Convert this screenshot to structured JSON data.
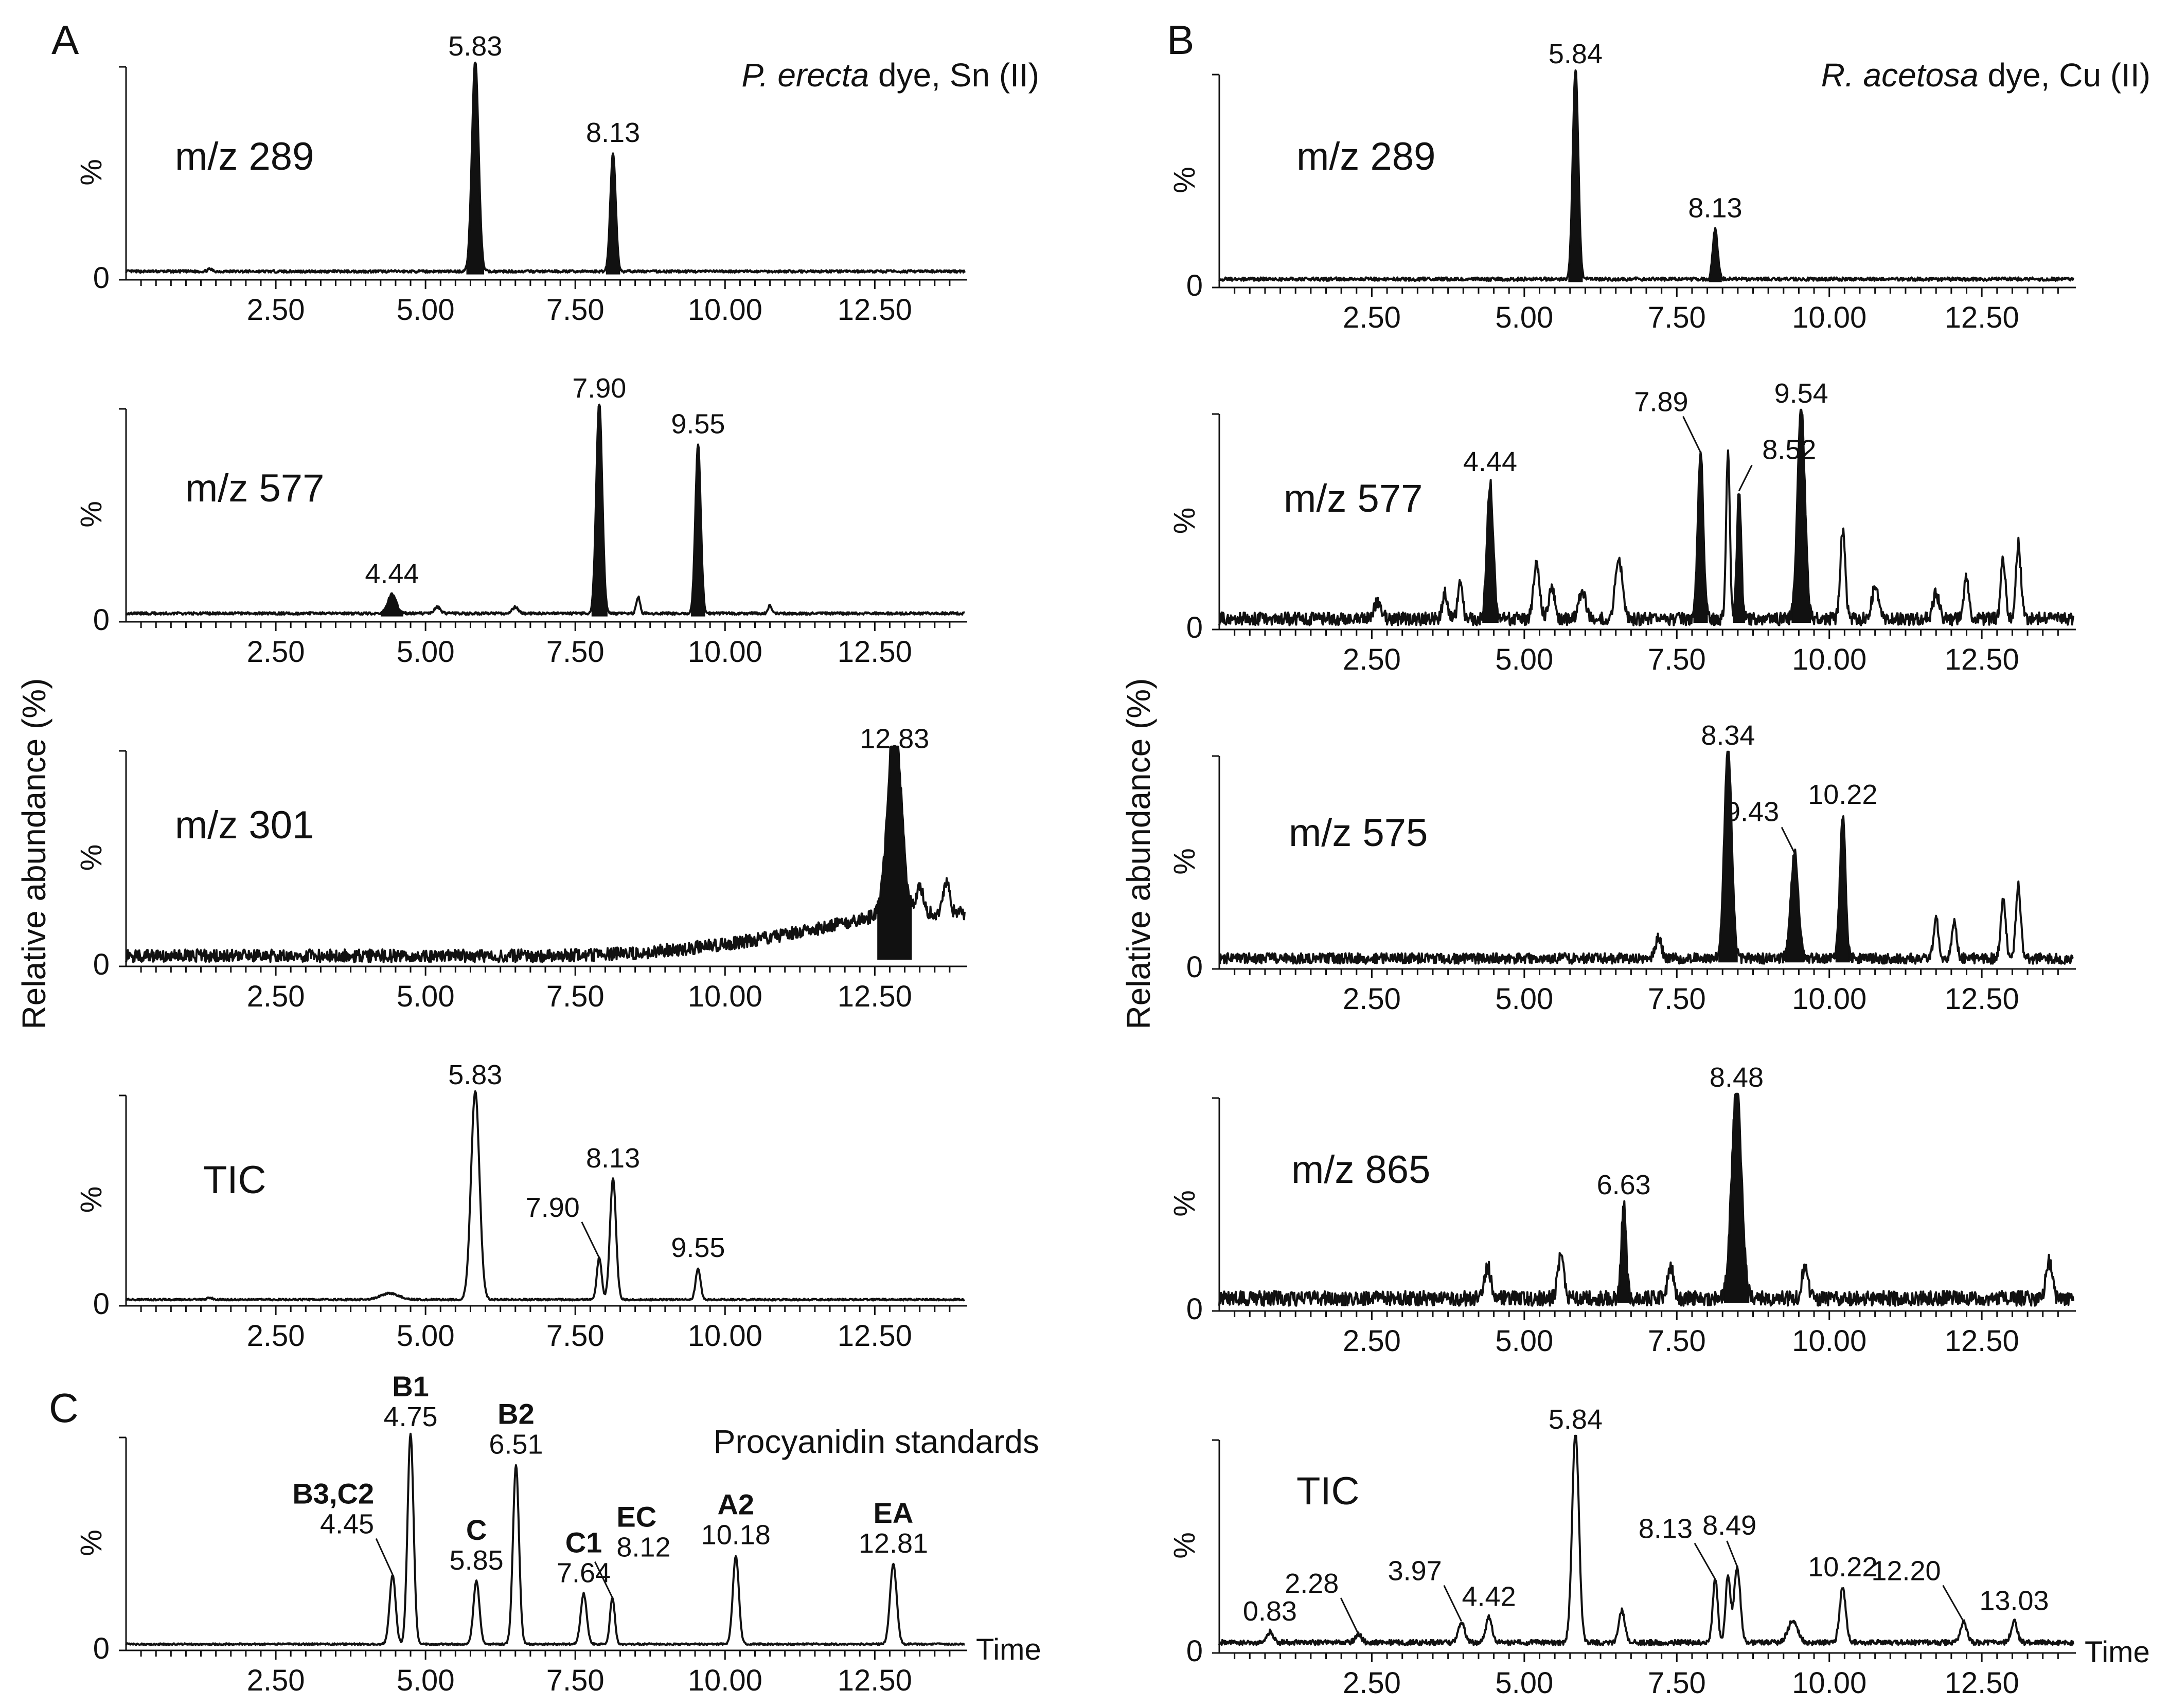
{
  "panel_letters": {
    "a": "A",
    "b": "B",
    "c": "C"
  },
  "titles": {
    "a_italic": "P. erecta",
    "a_rest": " dye, Sn (II)",
    "b_italic": "R. acetosa",
    "b_rest": " dye, Cu (II)",
    "c": "Procyanidin standards"
  },
  "ylabel": "Relative abundance (%)",
  "x_axis_label": "Time",
  "chart_data": [
    {
      "type": "line",
      "id": "A1",
      "title": "m/z 289",
      "ylabel": "%",
      "y_tick": "0",
      "xlim": [
        0,
        14
      ],
      "x_ticks": [
        "2.50",
        "5.00",
        "7.50",
        "10.00",
        "12.50"
      ],
      "baseline": 0.03,
      "noise": 0.006,
      "peaks": [
        {
          "rt": 5.83,
          "h": 1.0,
          "w": 0.055,
          "label": "5.83",
          "filled": true
        },
        {
          "rt": 8.13,
          "h": 0.56,
          "w": 0.045,
          "label": "8.13",
          "filled": true
        },
        {
          "rt": 1.4,
          "h": 0.01,
          "w": 0.04
        }
      ]
    },
    {
      "type": "line",
      "id": "A2",
      "title": "m/z 577",
      "ylabel": "%",
      "y_tick": "0",
      "xlim": [
        0,
        14
      ],
      "x_ticks": [
        "2.50",
        "5.00",
        "7.50",
        "10.00",
        "12.50"
      ],
      "baseline": 0.03,
      "noise": 0.006,
      "peaks": [
        {
          "rt": 4.44,
          "h": 0.09,
          "w": 0.07,
          "label": "4.44",
          "filled": true
        },
        {
          "rt": 7.9,
          "h": 1.0,
          "w": 0.05,
          "label": "7.90",
          "filled": true
        },
        {
          "rt": 9.55,
          "h": 0.8,
          "w": 0.045,
          "label": "9.55",
          "filled": true
        },
        {
          "rt": 8.55,
          "h": 0.08,
          "w": 0.03
        },
        {
          "rt": 10.75,
          "h": 0.04,
          "w": 0.03
        },
        {
          "rt": 5.2,
          "h": 0.03,
          "w": 0.05
        },
        {
          "rt": 6.5,
          "h": 0.03,
          "w": 0.05
        }
      ]
    },
    {
      "type": "line",
      "id": "A3",
      "title": "m/z 301",
      "ylabel": "%",
      "y_tick": "0",
      "xlim": [
        0,
        14
      ],
      "x_ticks": [
        "2.50",
        "5.00",
        "7.50",
        "10.00",
        "12.50"
      ],
      "baseline": 0.04,
      "noise": 0.03,
      "ramp": {
        "start": 7.0,
        "end": 12.7,
        "to": 0.2
      },
      "peaks": [
        {
          "rt": 12.83,
          "h": 0.92,
          "w": 0.11,
          "label": "12.83",
          "filled": true
        },
        {
          "rt": 13.25,
          "h": 0.12,
          "w": 0.06
        },
        {
          "rt": 13.7,
          "h": 0.15,
          "w": 0.05
        }
      ]
    },
    {
      "type": "line",
      "id": "A4",
      "title": "TIC",
      "ylabel": "%",
      "y_tick": "0",
      "xlim": [
        0,
        14
      ],
      "x_ticks": [
        "2.50",
        "5.00",
        "7.50",
        "10.00",
        "12.50"
      ],
      "baseline": 0.02,
      "noise": 0.004,
      "peaks": [
        {
          "rt": 5.83,
          "h": 1.0,
          "w": 0.07,
          "label": "5.83"
        },
        {
          "rt": 8.13,
          "h": 0.58,
          "w": 0.05,
          "label": "8.13"
        },
        {
          "rt": 7.9,
          "h": 0.2,
          "w": 0.04,
          "label": "7.90",
          "leader": true
        },
        {
          "rt": 9.55,
          "h": 0.15,
          "w": 0.04,
          "label": "9.55"
        },
        {
          "rt": 4.4,
          "h": 0.03,
          "w": 0.15
        },
        {
          "rt": 1.4,
          "h": 0.01,
          "w": 0.04
        }
      ]
    },
    {
      "type": "line",
      "id": "C",
      "title": "",
      "ylabel": "%",
      "y_tick": "0",
      "xlim": [
        0,
        14
      ],
      "x_ticks": [
        "2.50",
        "5.00",
        "7.50",
        "10.00",
        "12.50"
      ],
      "baseline": 0.02,
      "noise": 0.004,
      "peaks": [
        {
          "rt": 4.45,
          "h": 0.33,
          "w": 0.05,
          "label": "4.45",
          "compound": "B3,C2",
          "leader": true
        },
        {
          "rt": 4.75,
          "h": 1.0,
          "w": 0.05,
          "label": "4.75",
          "compound": "B1"
        },
        {
          "rt": 5.85,
          "h": 0.3,
          "w": 0.05,
          "label": "5.85",
          "compound": "C"
        },
        {
          "rt": 6.51,
          "h": 0.85,
          "w": 0.05,
          "label": "6.51",
          "compound": "B2"
        },
        {
          "rt": 7.64,
          "h": 0.24,
          "w": 0.05,
          "label": "7.64",
          "compound": "C1"
        },
        {
          "rt": 8.12,
          "h": 0.22,
          "w": 0.04,
          "label": "8.12",
          "compound": "EC",
          "leader": true
        },
        {
          "rt": 10.18,
          "h": 0.42,
          "w": 0.05,
          "label": "10.18",
          "compound": "A2"
        },
        {
          "rt": 12.81,
          "h": 0.38,
          "w": 0.055,
          "label": "12.81",
          "compound": "EA"
        }
      ]
    },
    {
      "type": "line",
      "id": "B1",
      "title": "m/z 289",
      "ylabel": "%",
      "y_tick": "0",
      "xlim": [
        0,
        14
      ],
      "x_ticks": [
        "2.50",
        "5.00",
        "7.50",
        "10.00",
        "12.50"
      ],
      "baseline": 0.03,
      "noise": 0.008,
      "peaks": [
        {
          "rt": 5.84,
          "h": 1.0,
          "w": 0.045,
          "label": "5.84",
          "filled": true
        },
        {
          "rt": 8.13,
          "h": 0.24,
          "w": 0.04,
          "label": "8.13",
          "filled": true
        }
      ]
    },
    {
      "type": "line",
      "id": "B2",
      "title": "m/z 577",
      "ylabel": "%",
      "y_tick": "0",
      "xlim": [
        0,
        14
      ],
      "x_ticks": [
        "2.50",
        "5.00",
        "7.50",
        "10.00",
        "12.50"
      ],
      "baseline": 0.04,
      "noise": 0.03,
      "peaks": [
        {
          "rt": 4.44,
          "h": 0.64,
          "w": 0.05,
          "label": "4.44",
          "filled": true
        },
        {
          "rt": 7.89,
          "h": 0.78,
          "w": 0.045,
          "label": "7.89",
          "filled": true,
          "leader": true
        },
        {
          "rt": 8.34,
          "h": 0.78,
          "w": 0.03
        },
        {
          "rt": 8.52,
          "h": 0.6,
          "w": 0.035,
          "label": "8.52",
          "filled": true,
          "leader": true
        },
        {
          "rt": 9.54,
          "h": 1.0,
          "w": 0.06,
          "label": "9.54",
          "filled": true
        },
        {
          "rt": 10.22,
          "h": 0.42,
          "w": 0.04
        },
        {
          "rt": 5.2,
          "h": 0.25,
          "w": 0.05
        },
        {
          "rt": 5.45,
          "h": 0.15,
          "w": 0.05
        },
        {
          "rt": 6.55,
          "h": 0.28,
          "w": 0.06
        },
        {
          "rt": 5.95,
          "h": 0.14,
          "w": 0.05
        },
        {
          "rt": 3.7,
          "h": 0.12,
          "w": 0.04
        },
        {
          "rt": 3.95,
          "h": 0.16,
          "w": 0.04
        },
        {
          "rt": 10.75,
          "h": 0.15,
          "w": 0.05
        },
        {
          "rt": 12.85,
          "h": 0.28,
          "w": 0.04
        },
        {
          "rt": 13.1,
          "h": 0.35,
          "w": 0.04
        },
        {
          "rt": 12.25,
          "h": 0.2,
          "w": 0.04
        },
        {
          "rt": 11.75,
          "h": 0.12,
          "w": 0.05
        },
        {
          "rt": 2.6,
          "h": 0.08,
          "w": 0.06
        }
      ]
    },
    {
      "type": "line",
      "id": "B3",
      "title": "m/z 575",
      "ylabel": "%",
      "y_tick": "0",
      "xlim": [
        0,
        14
      ],
      "x_ticks": [
        "2.50",
        "5.00",
        "7.50",
        "10.00",
        "12.50"
      ],
      "baseline": 0.04,
      "noise": 0.025,
      "peaks": [
        {
          "rt": 8.34,
          "h": 1.0,
          "w": 0.06,
          "label": "8.34",
          "filled": true
        },
        {
          "rt": 9.43,
          "h": 0.5,
          "w": 0.06,
          "label": "9.43",
          "filled": true,
          "leader": true
        },
        {
          "rt": 10.22,
          "h": 0.68,
          "w": 0.045,
          "label": "10.22",
          "filled": true
        },
        {
          "rt": 7.2,
          "h": 0.1,
          "w": 0.05
        },
        {
          "rt": 11.75,
          "h": 0.2,
          "w": 0.04
        },
        {
          "rt": 12.05,
          "h": 0.18,
          "w": 0.04
        },
        {
          "rt": 12.85,
          "h": 0.28,
          "w": 0.04
        },
        {
          "rt": 13.1,
          "h": 0.34,
          "w": 0.04
        }
      ]
    },
    {
      "type": "line",
      "id": "B4",
      "title": "m/z 865",
      "ylabel": "%",
      "y_tick": "0",
      "xlim": [
        0,
        14
      ],
      "x_ticks": [
        "2.50",
        "5.00",
        "7.50",
        "10.00",
        "12.50"
      ],
      "baseline": 0.05,
      "noise": 0.035,
      "peaks": [
        {
          "rt": 6.63,
          "h": 0.44,
          "w": 0.04,
          "label": "6.63",
          "filled": true
        },
        {
          "rt": 8.48,
          "h": 1.0,
          "w": 0.08,
          "label": "8.48",
          "filled": true
        },
        {
          "rt": 5.6,
          "h": 0.2,
          "w": 0.05
        },
        {
          "rt": 4.4,
          "h": 0.15,
          "w": 0.05
        },
        {
          "rt": 7.4,
          "h": 0.15,
          "w": 0.05
        },
        {
          "rt": 13.6,
          "h": 0.18,
          "w": 0.05
        },
        {
          "rt": 9.6,
          "h": 0.14,
          "w": 0.05
        }
      ]
    },
    {
      "type": "line",
      "id": "B5",
      "title": "TIC",
      "ylabel": "%",
      "y_tick": "0",
      "xlim": [
        0,
        14
      ],
      "x_ticks": [
        "2.50",
        "5.00",
        "7.50",
        "10.00",
        "12.50"
      ],
      "baseline": 0.04,
      "noise": 0.012,
      "peaks": [
        {
          "rt": 0.83,
          "h": 0.05,
          "w": 0.05,
          "label": "0.83"
        },
        {
          "rt": 2.28,
          "h": 0.04,
          "w": 0.05,
          "label": "2.28",
          "leader": true
        },
        {
          "rt": 3.97,
          "h": 0.1,
          "w": 0.05,
          "label": "3.97",
          "leader": true
        },
        {
          "rt": 4.42,
          "h": 0.12,
          "w": 0.05,
          "label": "4.42"
        },
        {
          "rt": 5.84,
          "h": 1.0,
          "w": 0.055,
          "label": "5.84"
        },
        {
          "rt": 6.6,
          "h": 0.15,
          "w": 0.05
        },
        {
          "rt": 8.13,
          "h": 0.3,
          "w": 0.04,
          "label": "8.13",
          "leader": true
        },
        {
          "rt": 8.34,
          "h": 0.32,
          "w": 0.04
        },
        {
          "rt": 8.49,
          "h": 0.36,
          "w": 0.05,
          "label": "8.49",
          "leader": true
        },
        {
          "rt": 10.22,
          "h": 0.26,
          "w": 0.05,
          "label": "10.22"
        },
        {
          "rt": 12.2,
          "h": 0.1,
          "w": 0.05,
          "label": "12.20",
          "leader": true
        },
        {
          "rt": 13.03,
          "h": 0.1,
          "w": 0.05,
          "label": "13.03"
        },
        {
          "rt": 9.4,
          "h": 0.1,
          "w": 0.08
        }
      ]
    }
  ]
}
